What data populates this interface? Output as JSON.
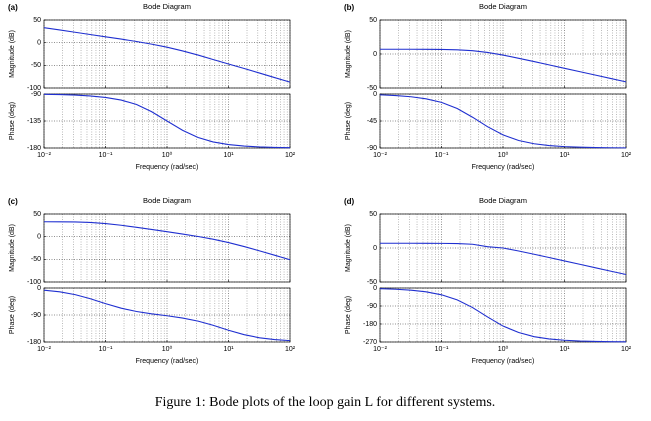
{
  "caption": "Figure 1: Bode plots of the loop gain L for different systems.",
  "chart_data": [
    {
      "type": "bode",
      "label": "(a)",
      "title": "Bode Diagram",
      "xlabel": "Frequency (rad/sec)",
      "xscale": "log",
      "grid": true,
      "minor_grid": true,
      "color": "#1f2fd0",
      "xlim": [
        0.01,
        100
      ],
      "xticks": [
        {
          "value": 0.01,
          "label": "10⁻²"
        },
        {
          "value": 0.1,
          "label": "10⁻¹"
        },
        {
          "value": 1,
          "label": "10⁰"
        },
        {
          "value": 10,
          "label": "10¹"
        },
        {
          "value": 100,
          "label": "10²"
        }
      ],
      "x": [
        0.01,
        0.018,
        0.032,
        0.056,
        0.1,
        0.18,
        0.32,
        0.56,
        1,
        1.8,
        3.2,
        5.6,
        10,
        18,
        32,
        56,
        100
      ],
      "magnitude": {
        "ylabel": "Magnitude (dB)",
        "ylim": [
          -100,
          50
        ],
        "yticks": [
          -100,
          -50,
          0,
          50
        ],
        "values": [
          33,
          28,
          23,
          18,
          13,
          7.9,
          2.6,
          -3.2,
          -10,
          -18.2,
          -27.4,
          -37.1,
          -47,
          -57,
          -67,
          -77,
          -87
        ]
      },
      "phase": {
        "ylabel": "Phase (deg)",
        "ylim": [
          -180,
          -90
        ],
        "yticks": [
          -180,
          -135,
          -90
        ],
        "values": [
          -90.6,
          -91,
          -91.8,
          -93.2,
          -95.7,
          -100.1,
          -107.5,
          -119.4,
          -135,
          -150.6,
          -162.5,
          -169.9,
          -174.3,
          -176.8,
          -178.2,
          -179,
          -179.4
        ]
      }
    },
    {
      "type": "bode",
      "label": "(b)",
      "title": "Bode Diagram",
      "xlabel": "Frequency (rad/sec)",
      "xscale": "log",
      "grid": true,
      "minor_grid": true,
      "color": "#1f2fd0",
      "xlim": [
        0.01,
        100
      ],
      "xticks": [
        {
          "value": 0.01,
          "label": "10⁻²"
        },
        {
          "value": 0.1,
          "label": "10⁻¹"
        },
        {
          "value": 1,
          "label": "10⁰"
        },
        {
          "value": 10,
          "label": "10¹"
        },
        {
          "value": 100,
          "label": "10²"
        }
      ],
      "x": [
        0.01,
        0.018,
        0.032,
        0.056,
        0.1,
        0.18,
        0.32,
        0.56,
        1,
        1.8,
        3.2,
        5.6,
        10,
        18,
        32,
        56,
        100
      ],
      "magnitude": {
        "ylabel": "Magnitude (dB)",
        "ylim": [
          -50,
          50
        ],
        "yticks": [
          -50,
          0,
          50
        ],
        "values": [
          7,
          7,
          6.97,
          6.9,
          6.7,
          6.2,
          4.9,
          2.3,
          -1.6,
          -6.3,
          -11.1,
          -16,
          -21,
          -26.1,
          -31.1,
          -35.9,
          -41
        ]
      },
      "phase": {
        "ylabel": "Phase (deg)",
        "ylim": [
          -90,
          0
        ],
        "yticks": [
          -90,
          -45,
          0
        ],
        "values": [
          -1.4,
          -2.6,
          -4.6,
          -8,
          -14,
          -24.2,
          -38.7,
          -54.5,
          -68.2,
          -77.5,
          -82.9,
          -85.9,
          -87.7,
          -88.7,
          -89.3,
          -89.6,
          -89.8
        ]
      }
    },
    {
      "type": "bode",
      "label": "(c)",
      "title": "Bode Diagram",
      "xlabel": "Frequency (rad/sec)",
      "xscale": "log",
      "grid": true,
      "minor_grid": true,
      "color": "#1f2fd0",
      "xlim": [
        0.01,
        100
      ],
      "xticks": [
        {
          "value": 0.01,
          "label": "10⁻²"
        },
        {
          "value": 0.1,
          "label": "10⁻¹"
        },
        {
          "value": 1,
          "label": "10⁰"
        },
        {
          "value": 10,
          "label": "10¹"
        },
        {
          "value": 100,
          "label": "10²"
        }
      ],
      "x": [
        0.01,
        0.018,
        0.032,
        0.056,
        0.1,
        0.18,
        0.32,
        0.56,
        1,
        1.8,
        3.2,
        5.6,
        10,
        18,
        32,
        56,
        100
      ],
      "magnitude": {
        "ylabel": "Magnitude (dB)",
        "ylim": [
          -100,
          50
        ],
        "yticks": [
          -100,
          -50,
          0,
          50
        ],
        "values": [
          32.9,
          32.8,
          32.4,
          31.3,
          28.9,
          25.2,
          20.7,
          16,
          10.9,
          5.8,
          0.4,
          -5.6,
          -13,
          -21.8,
          -31.3,
          -40.9,
          -50.9
        ]
      },
      "phase": {
        "ylabel": "Phase (deg)",
        "ylim": [
          -180,
          0
        ],
        "yticks": [
          -180,
          -90,
          0
        ],
        "values": [
          -7.2,
          -12.8,
          -22,
          -35.4,
          -52,
          -67.3,
          -78.3,
          -85.9,
          -92.5,
          -100.2,
          -110.4,
          -124.2,
          -140.8,
          -155.7,
          -165.9,
          -171.8,
          -175.4
        ]
      }
    },
    {
      "type": "bode",
      "label": "(d)",
      "title": "Bode Diagram",
      "xlabel": "Frequency (rad/sec)",
      "xscale": "log",
      "grid": true,
      "minor_grid": true,
      "color": "#1f2fd0",
      "xlim": [
        0.01,
        100
      ],
      "xticks": [
        {
          "value": 0.01,
          "label": "10⁻²"
        },
        {
          "value": 0.1,
          "label": "10⁻¹"
        },
        {
          "value": 1,
          "label": "10⁰"
        },
        {
          "value": 10,
          "label": "10¹"
        },
        {
          "value": 100,
          "label": "10²"
        }
      ],
      "x": [
        0.01,
        0.018,
        0.032,
        0.056,
        0.1,
        0.18,
        0.32,
        0.56,
        1,
        1.8,
        3.2,
        5.6,
        10,
        18,
        32,
        56,
        100
      ],
      "magnitude": {
        "ylabel": "Magnitude (dB)",
        "ylim": [
          -50,
          50
        ],
        "yticks": [
          -50,
          0,
          50
        ],
        "values": [
          7,
          7,
          7,
          6.9,
          6.8,
          6.5,
          5.5,
          1.9,
          0,
          -4.4,
          -9.2,
          -14,
          -19,
          -24.1,
          -29.1,
          -34,
          -39
        ]
      },
      "phase": {
        "ylabel": "Phase (deg)",
        "ylim": [
          -270,
          0
        ],
        "yticks": [
          -270,
          -180,
          -90,
          0
        ],
        "values": [
          -3.5,
          -6.2,
          -11,
          -18.9,
          -33.9,
          -59.4,
          -97.8,
          -144.6,
          -190.2,
          -222.6,
          -243.3,
          -254.7,
          -261.3,
          -265.2,
          -267.3,
          -268.5,
          -269.1
        ]
      }
    }
  ]
}
